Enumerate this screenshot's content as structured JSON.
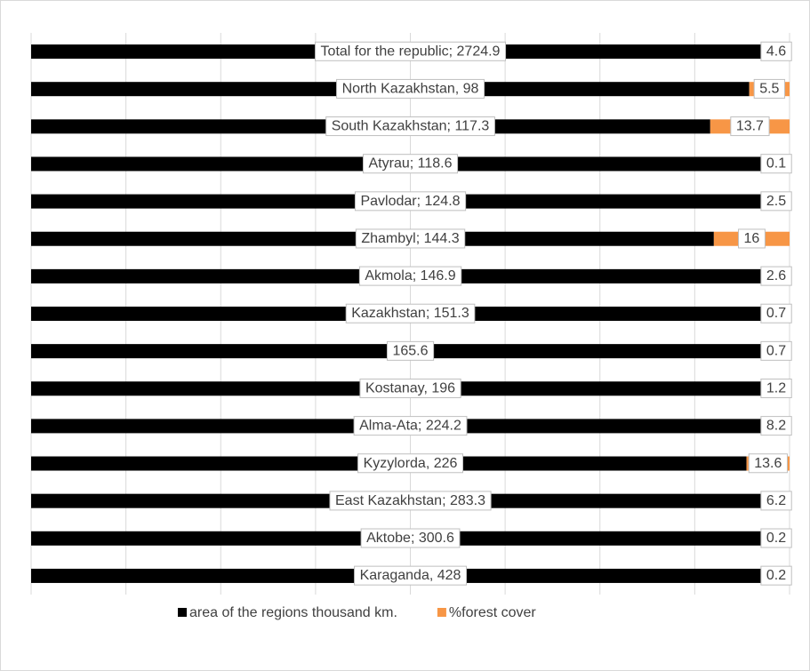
{
  "chart_data": {
    "type": "bar",
    "stacking": "percent",
    "orientation": "horizontal",
    "grid": true,
    "legend": "bottom",
    "series": [
      {
        "name": "area of the regions thousand km.",
        "color": "#000000",
        "values": [
          2724.9,
          98,
          117.3,
          118.6,
          124.8,
          144.3,
          146.9,
          151.3,
          165.6,
          196,
          224.2,
          226,
          283.3,
          300.6,
          428
        ],
        "value_labels": [
          "Total for the republic; 2724.9",
          "North Kazakhstan, 98",
          "South Kazakhstan; 117.3",
          "Atyrau; 118.6",
          "Pavlodar; 124.8",
          "Zhambyl; 144.3",
          "Akmola; 146.9",
          "Kazakhstan; 151.3",
          "165.6",
          "Kostanay, 196",
          "Alma-Ata; 224.2",
          "Kyzylorda, 226",
          "East Kazakhstan; 283.3",
          "Aktobe; 300.6",
          "Karaganda, 428"
        ]
      },
      {
        "name": "%forest cover",
        "color": "#f79646",
        "values": [
          4.6,
          5.5,
          13.7,
          0.1,
          2.5,
          16,
          2.6,
          0.7,
          0.7,
          1.2,
          8.2,
          13.6,
          6.2,
          0.2,
          0.2
        ]
      }
    ]
  }
}
